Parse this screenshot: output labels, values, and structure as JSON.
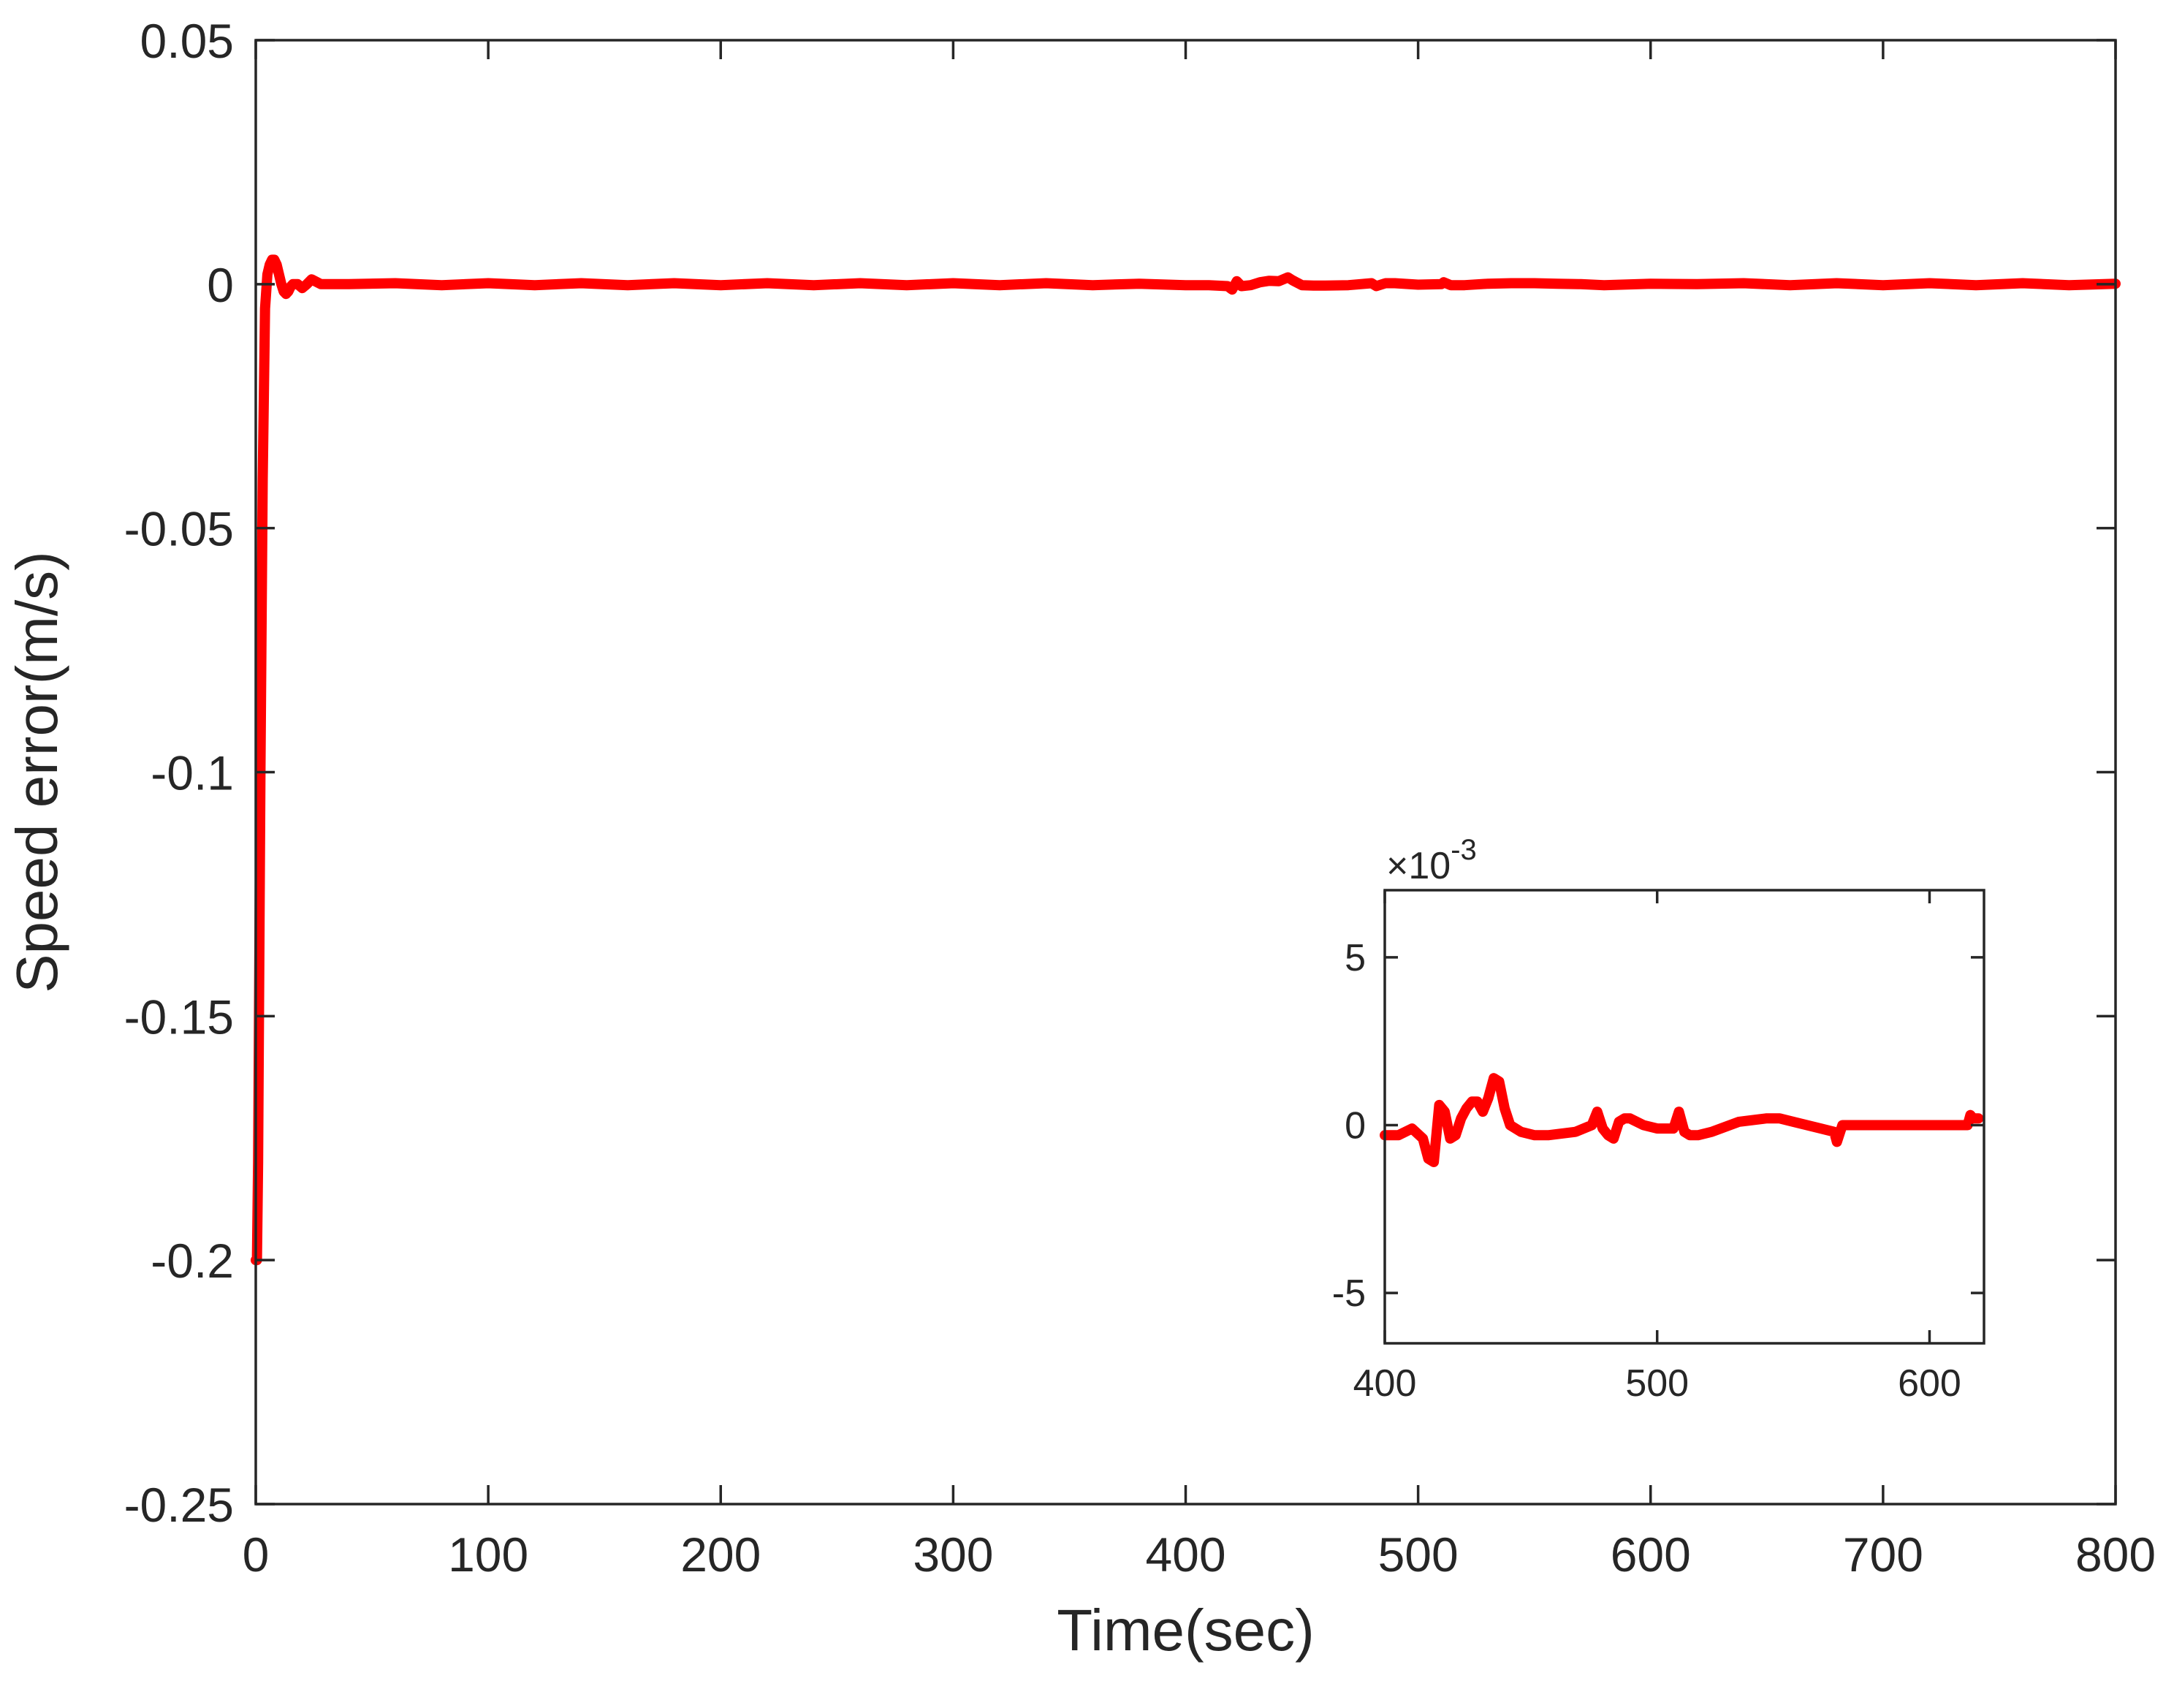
{
  "chart_data": [
    {
      "id": "main",
      "type": "line",
      "xlabel": "Time(sec)",
      "ylabel": "Speed error(m/s)",
      "xlim": [
        0,
        800
      ],
      "ylim": [
        -0.25,
        0.05
      ],
      "xticks": [
        0,
        100,
        200,
        300,
        400,
        500,
        600,
        700,
        800
      ],
      "xtick_labels": [
        "0",
        "100",
        "200",
        "300",
        "400",
        "500",
        "600",
        "700",
        "800"
      ],
      "yticks": [
        -0.25,
        -0.2,
        -0.15,
        -0.1,
        -0.05,
        0,
        0.05
      ],
      "ytick_labels": [
        "-0.25",
        "-0.2",
        "-0.15",
        "-0.1",
        "-0.05",
        "0",
        "0.05"
      ],
      "grid": false,
      "series": [
        {
          "color": "#ff0000",
          "x": [
            0,
            0.5,
            1,
            2,
            3,
            4,
            5,
            6,
            7,
            8,
            9,
            10,
            11,
            12,
            13,
            14,
            15,
            16,
            18,
            20,
            22,
            24,
            26,
            28,
            30,
            40,
            60,
            80,
            100,
            120,
            140,
            160,
            180,
            200,
            220,
            240,
            260,
            280,
            300,
            320,
            340,
            360,
            380,
            400,
            410,
            418,
            420,
            422,
            424,
            428,
            432,
            436,
            440,
            444,
            446,
            450,
            455,
            460,
            470,
            480,
            482,
            486,
            490,
            500,
            510,
            511,
            514,
            520,
            530,
            540,
            550,
            560,
            570,
            580,
            600,
            620,
            640,
            660,
            680,
            700,
            720,
            740,
            760,
            780,
            800
          ],
          "y": [
            -0.2,
            -0.2,
            -0.18,
            -0.1,
            -0.04,
            -0.005,
            0.002,
            0.004,
            0.005,
            0.005,
            0.004,
            0.002,
            0.0,
            -0.0015,
            -0.002,
            -0.0015,
            -0.0005,
            0.0,
            0.0,
            -0.0008,
            0.0,
            0.001,
            0.0005,
            0.0,
            0.0,
            0.0,
            0.0002,
            -0.0002,
            0.0002,
            -0.0002,
            0.0002,
            -0.0002,
            0.0002,
            -0.0002,
            0.0002,
            -0.0002,
            0.0002,
            -0.0002,
            0.0002,
            -0.0002,
            0.0002,
            -0.0002,
            0.0001,
            -0.0002,
            -0.0002,
            -0.0004,
            -0.0011,
            0.0006,
            -0.0004,
            -0.0002,
            0.0004,
            0.0007,
            0.0006,
            0.0014,
            0.0008,
            -0.0002,
            -0.0003,
            -0.0003,
            -0.0002,
            0.0002,
            -0.0004,
            0.0002,
            0.0002,
            -0.0001,
            0.0,
            0.0004,
            -0.0002,
            -0.0002,
            0.0001,
            0.0002,
            0.0002,
            0.0001,
            0.0,
            -0.0002,
            0.0001,
            0.0,
            0.0002,
            -0.0002,
            0.0002,
            -0.0002,
            0.0002,
            -0.0002,
            0.0002,
            -0.0002,
            0.0001
          ]
        }
      ]
    },
    {
      "id": "inset",
      "type": "line",
      "xlim": [
        400,
        620
      ],
      "ylim": [
        -0.0065,
        0.007
      ],
      "xticks": [
        400,
        500,
        600
      ],
      "xtick_labels": [
        "400",
        "500",
        "600"
      ],
      "yticks": [
        -0.005,
        0,
        0.005
      ],
      "ytick_labels": [
        "-5",
        "0",
        "5"
      ],
      "y_exponent_label": "×10",
      "y_exponent_power": "-3",
      "grid": false,
      "series": [
        {
          "color": "#ff0000",
          "x": [
            400,
            405,
            410,
            414,
            416,
            418,
            420,
            422,
            424,
            426,
            428,
            430,
            432,
            434,
            436,
            438,
            440,
            442,
            444,
            446,
            450,
            455,
            460,
            470,
            476,
            478,
            480,
            482,
            484,
            486,
            488,
            490,
            495,
            500,
            506,
            508,
            510,
            512,
            515,
            520,
            530,
            540,
            545,
            550,
            560,
            565,
            566,
            568,
            570,
            575,
            580,
            590,
            600,
            610,
            614,
            615,
            616,
            618
          ],
          "y": [
            -0.0003,
            -0.0003,
            -0.0001,
            -0.0004,
            -0.001,
            -0.0011,
            0.0006,
            0.0004,
            -0.0004,
            -0.0003,
            0.0002,
            0.0005,
            0.0007,
            0.0007,
            0.0004,
            0.0008,
            0.0014,
            0.0013,
            0.0005,
            0.0,
            -0.0002,
            -0.0003,
            -0.0003,
            -0.0002,
            0.0,
            0.0004,
            -0.0001,
            -0.0003,
            -0.0004,
            0.0001,
            0.0002,
            0.0002,
            0.0,
            -0.0001,
            -0.0001,
            0.0004,
            -0.0002,
            -0.0003,
            -0.0003,
            -0.0002,
            0.0001,
            0.0002,
            0.0002,
            0.0001,
            -0.0001,
            -0.0002,
            -0.0005,
            0.0,
            0.0,
            0.0,
            0.0,
            0.0,
            0.0,
            0.0,
            0.0,
            0.0003,
            0.0002,
            0.0002
          ]
        }
      ]
    }
  ]
}
